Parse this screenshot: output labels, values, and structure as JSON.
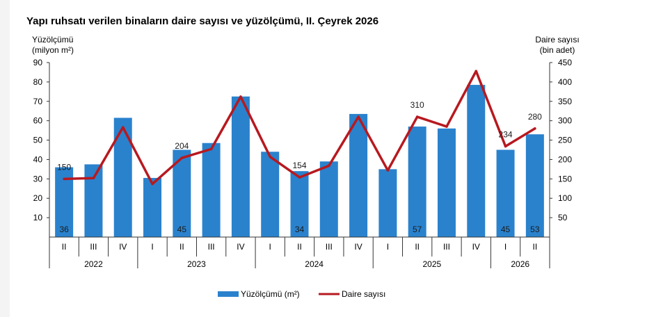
{
  "title": "Yapı ruhsatı verilen binaların daire sayısı ve yüzölçümü, II. Çeyrek 2026",
  "left_axis": {
    "line1": "Yüzölçümü",
    "line2": "(milyon m²)"
  },
  "right_axis": {
    "line1": "Daire sayısı",
    "line2": "(bin adet)"
  },
  "legend": {
    "bar": "Yüzölçümü (m²)",
    "line": "Daire sayısı"
  },
  "colors": {
    "bar": "#2a82cd",
    "line": "#b7191f"
  },
  "chart_data": {
    "type": "bar",
    "categories": [
      "II",
      "III",
      "IV",
      "I",
      "II",
      "III",
      "IV",
      "I",
      "II",
      "III",
      "IV",
      "I",
      "II",
      "III",
      "IV",
      "I",
      "II"
    ],
    "years": [
      {
        "label": "2022",
        "quarters": 3
      },
      {
        "label": "2023",
        "quarters": 4
      },
      {
        "label": "2024",
        "quarters": 4
      },
      {
        "label": "2025",
        "quarters": 4
      },
      {
        "label": "2026",
        "quarters": 2
      }
    ],
    "series": [
      {
        "name": "Yüzölçümü (m²)",
        "type": "bar",
        "axis": "left",
        "values": [
          36,
          37.5,
          61.5,
          30.5,
          45,
          48.5,
          72.5,
          44,
          34,
          39,
          63.5,
          35,
          57,
          56,
          78.5,
          45,
          53
        ],
        "labels": [
          "36",
          "",
          "",
          "",
          "45",
          "",
          "",
          "",
          "34",
          "",
          "",
          "",
          "57",
          "",
          "",
          "45",
          "53"
        ]
      },
      {
        "name": "Daire sayısı",
        "type": "line",
        "axis": "right",
        "values": [
          150,
          152,
          283,
          137,
          204,
          227,
          362,
          207,
          154,
          184,
          310,
          172,
          310,
          285,
          428,
          234,
          280
        ],
        "labels": [
          "150",
          "",
          "",
          "",
          "204",
          "",
          "",
          "",
          "154",
          "",
          "",
          "",
          "310",
          "",
          "",
          "234",
          "280"
        ]
      }
    ],
    "ylim_left": [
      0,
      90
    ],
    "yticks_left": [
      10,
      20,
      30,
      40,
      50,
      60,
      70,
      80,
      90
    ],
    "ylim_right": [
      0,
      450
    ],
    "yticks_right": [
      50,
      100,
      150,
      200,
      250,
      300,
      350,
      400,
      450
    ],
    "grid": false,
    "legend_position": "bottom"
  }
}
